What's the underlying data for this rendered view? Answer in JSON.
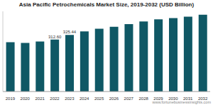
{
  "chart_data": {
    "type": "bar",
    "title": "Asia Pacific Petrochemicals Market Size, 2019-2032 (USD Billion)",
    "categories": [
      "2019",
      "2020",
      "2021",
      "2022",
      "2023",
      "2024",
      "2025",
      "2026",
      "2027",
      "2028",
      "2029",
      "2030",
      "2031",
      "2032"
    ],
    "values": [
      305.3,
      303.5,
      307.2,
      312.6,
      325.44,
      334.8,
      342.1,
      347.6,
      355.0,
      362.4,
      367.9,
      371.6,
      375.2,
      380.8
    ],
    "value_labels": [
      null,
      null,
      null,
      "312.60",
      "325.44",
      null,
      null,
      null,
      null,
      null,
      null,
      null,
      null,
      null
    ],
    "data_labels": true,
    "color": "#0f5865",
    "ylim": [
      170,
      390
    ],
    "tick_labels": "x",
    "grid": false,
    "annotations": [
      "www.fortunebusinessinsights.com"
    ]
  }
}
